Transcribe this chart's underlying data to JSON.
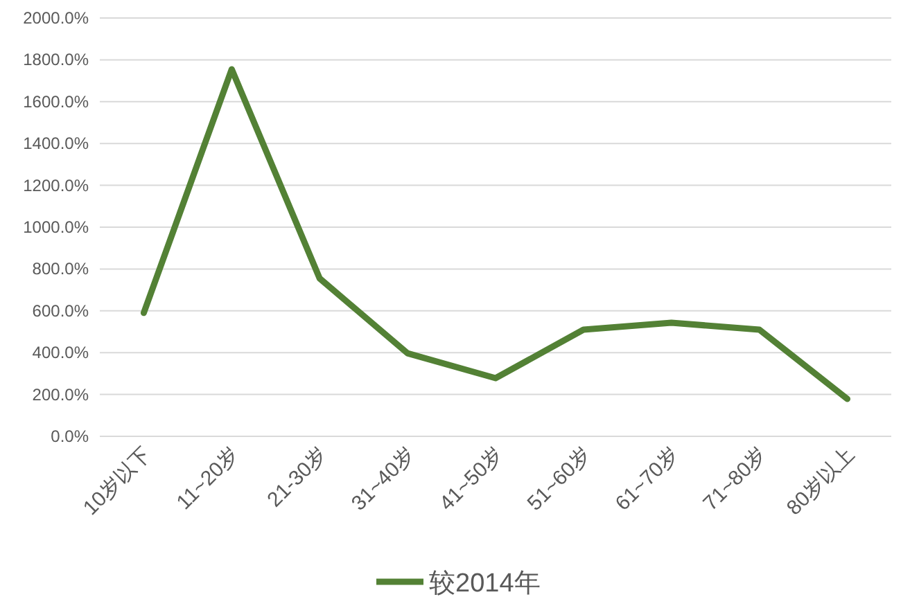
{
  "chart_data": {
    "type": "line",
    "categories": [
      "10岁以下",
      "11~20岁",
      "21-30岁",
      "31~40岁",
      "41~50岁",
      "51~60岁",
      "61~70岁",
      "71~80岁",
      "80岁以上"
    ],
    "series": [
      {
        "name": "较2014年",
        "color": "#538135",
        "values": [
          590,
          1755,
          755,
          397,
          278,
          510,
          543,
          510,
          179
        ]
      }
    ],
    "ylim": [
      0,
      2000
    ],
    "yticks": [
      {
        "value": 0,
        "label": "0.0%"
      },
      {
        "value": 200,
        "label": "200.0%"
      },
      {
        "value": 400,
        "label": "400.0%"
      },
      {
        "value": 600,
        "label": "600.0%"
      },
      {
        "value": 800,
        "label": "800.0%"
      },
      {
        "value": 1000,
        "label": "1000.0%"
      },
      {
        "value": 1200,
        "label": "1200.0%"
      },
      {
        "value": 1400,
        "label": "1400.0%"
      },
      {
        "value": 1600,
        "label": "1600.0%"
      },
      {
        "value": 1800,
        "label": "1800.0%"
      },
      {
        "value": 2000,
        "label": "2000.0%"
      }
    ],
    "grid": "y",
    "legend": "bottom",
    "marker": "none",
    "line_style": "solid"
  }
}
